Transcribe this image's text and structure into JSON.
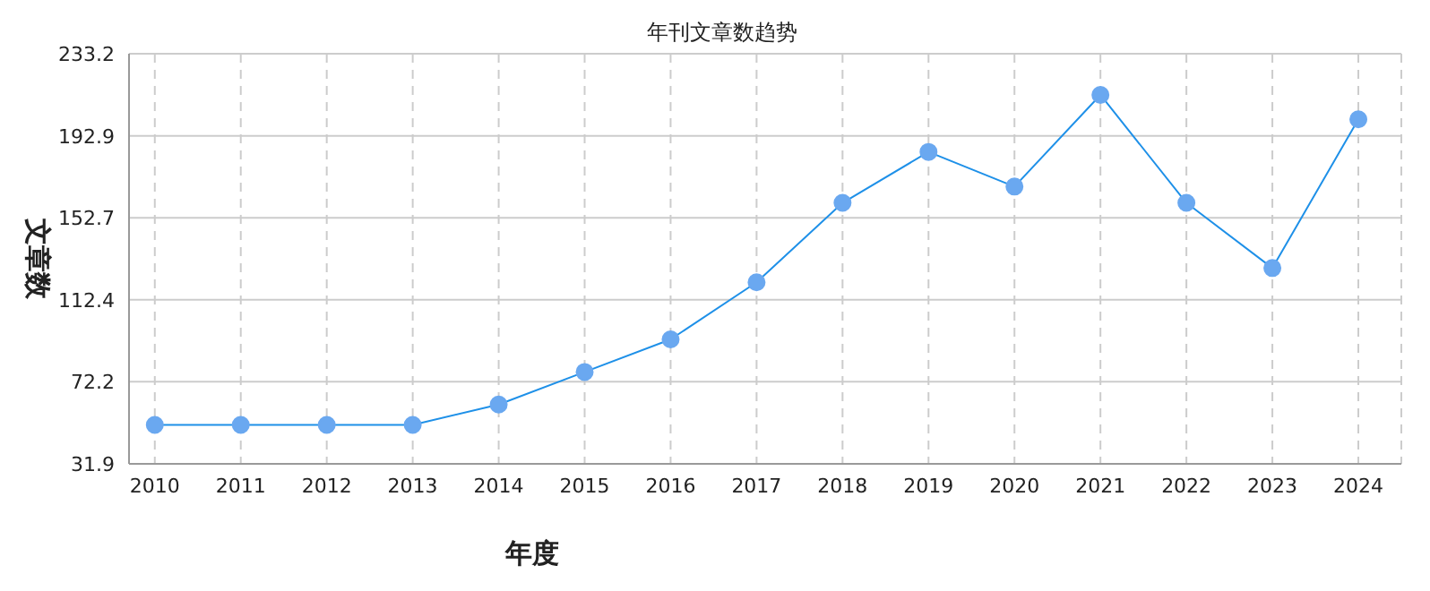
{
  "chart_data": {
    "type": "line",
    "title": "年刊文章数趋势",
    "xlabel": "年度",
    "ylabel": "文章数",
    "categories": [
      "2010",
      "2011",
      "2012",
      "2013",
      "2014",
      "2015",
      "2016",
      "2017",
      "2018",
      "2019",
      "2020",
      "2021",
      "2022",
      "2023",
      "2024"
    ],
    "series": [
      {
        "color": "#1e90e8",
        "values": [
          51,
          51,
          51,
          51,
          61,
          77,
          93,
          121,
          160,
          185,
          168,
          213,
          160,
          128,
          201
        ]
      }
    ],
    "ylim": [
      31.9,
      233.2
    ],
    "yticks": [
      31.9,
      72.2,
      112.4,
      152.7,
      192.9,
      233.2
    ],
    "grid": true,
    "marker": "circle",
    "line_style": "solid",
    "legend": false
  }
}
